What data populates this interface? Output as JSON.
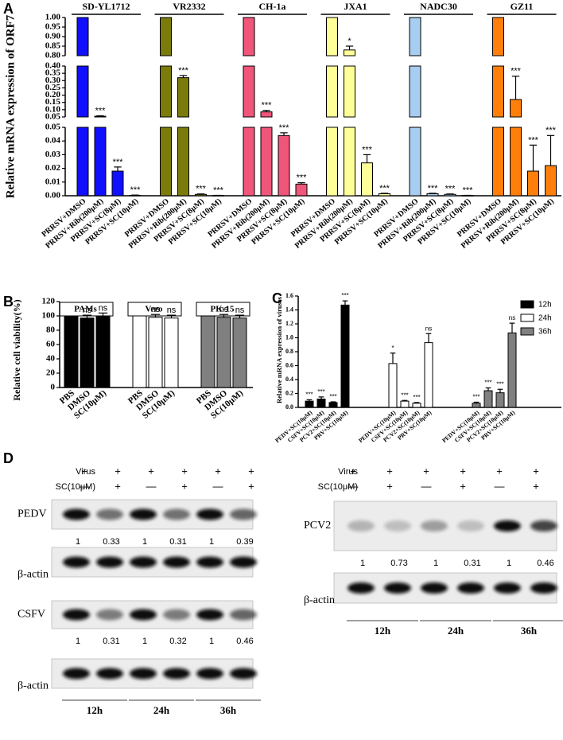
{
  "chart_data": [
    {
      "type": "bar",
      "panel_label": "A",
      "ylabel": "Relative mRNA expression of ORF7",
      "categories": [
        "PRRSV+DMSO",
        "PRRSV+Rib(200μM)",
        "PRRSV+SC(8μM)",
        "PRRSV+SC(10μM)"
      ],
      "segments": [
        {
          "ylim": [
            0,
            0.05
          ],
          "yticks": [
            {
              "value": 0,
              "label": "0.00"
            },
            0.01,
            0.02,
            0.03,
            0.04,
            0.05
          ]
        },
        {
          "ylim": [
            0.05,
            0.4
          ],
          "yticks": [
            0.05,
            {
              "value": 0.1,
              "label": "0.10"
            },
            0.15,
            {
              "value": 0.2,
              "label": "0.20"
            },
            0.25,
            {
              "value": 0.3,
              "label": "0.30"
            },
            0.35,
            {
              "value": 0.4,
              "label": "0.40"
            }
          ]
        },
        {
          "ylim": [
            0.8,
            1
          ],
          "yticks": [
            {
              "value": 0.8,
              "label": "0.80"
            },
            0.85,
            {
              "value": 0.9,
              "label": "0.90"
            },
            0.95,
            {
              "value": 1,
              "label": "1.00"
            }
          ]
        }
      ],
      "series": [
        {
          "name": "SD-YL1712",
          "color": "#1010ff",
          "values": [
            1,
            0.055,
            0.018,
            0.0003
          ],
          "errors": [
            null,
            0.003,
            0.003,
            0.0002
          ],
          "annotations": [
            null,
            "***",
            "***",
            "***"
          ]
        },
        {
          "name": "VR2332",
          "color": "#7b7b0c",
          "values": [
            1,
            0.32,
            0.001,
            0.0002
          ],
          "errors": [
            null,
            0.015,
            0.0003,
            0.0001
          ],
          "annotations": [
            null,
            "***",
            "***",
            "***"
          ]
        },
        {
          "name": "CH-1a",
          "color": "#f0557a",
          "values": [
            1,
            0.085,
            0.044,
            0.0085
          ],
          "errors": [
            null,
            0.01,
            0.002,
            0.001
          ],
          "annotations": [
            null,
            "***",
            "***",
            "***"
          ]
        },
        {
          "name": "JXA1",
          "color": "#ffff99",
          "values": [
            1,
            0.83,
            0.024,
            0.0015
          ],
          "errors": [
            null,
            0.02,
            0.006,
            0.0003
          ],
          "annotations": [
            null,
            "*",
            "***",
            "***"
          ]
        },
        {
          "name": "NADC30",
          "color": "#a7cdf0",
          "values": [
            1,
            0.0015,
            0.001,
            0.0002
          ],
          "errors": [
            null,
            0.0003,
            0.0003,
            0.0001
          ],
          "annotations": [
            null,
            "***",
            "***",
            "***"
          ]
        },
        {
          "name": "GZ11",
          "color": "#ff7f0a",
          "values": [
            1,
            0.17,
            0.018,
            0.022
          ],
          "errors": [
            null,
            0.16,
            0.019,
            0.022
          ],
          "annotations": [
            null,
            "***",
            "***",
            "***"
          ]
        }
      ]
    },
    {
      "type": "bar",
      "panel_label": "B",
      "ylabel": "Relative cell viability(%)",
      "categories": [
        "PBS",
        "DMSO",
        "SC(10μM)"
      ],
      "ylim": [
        0,
        120
      ],
      "yticks": [
        0,
        20,
        40,
        60,
        80,
        100,
        120
      ],
      "series": [
        {
          "name": "PAMs",
          "color": "#000000",
          "values": [
            100,
            97,
            100
          ],
          "errors": [
            null,
            4,
            4
          ],
          "annotations": [
            null,
            "ns",
            "ns"
          ]
        },
        {
          "name": "Vero",
          "color": "#ffffff",
          "values": [
            100,
            98,
            97
          ],
          "errors": [
            null,
            4,
            4
          ],
          "annotations": [
            null,
            "ns",
            "ns"
          ]
        },
        {
          "name": "PK-15",
          "color": "#808080",
          "values": [
            100,
            98,
            97
          ],
          "errors": [
            null,
            4,
            4
          ],
          "annotations": [
            null,
            "ns",
            "ns"
          ]
        }
      ]
    },
    {
      "type": "bar",
      "panel_label": "C",
      "ylabel": "Relative mRNA expression of viruses",
      "categories": [
        "PEDV+SC(10μM)",
        "CSFV+SC(10μM)",
        "PCV2+SC(10μM)",
        "PRV+SC(10μM)"
      ],
      "ylim": [
        0,
        1.6
      ],
      "yticks": [
        {
          "value": 0,
          "label": "0.0"
        },
        0.2,
        0.4,
        0.6,
        0.8,
        {
          "value": 1,
          "label": "1.0"
        },
        1.2,
        1.4,
        1.6
      ],
      "legend": "top-right",
      "series": [
        {
          "name": "12h",
          "color": "#000000",
          "values": [
            0.09,
            0.12,
            0.07,
            1.47
          ],
          "errors": [
            0.02,
            0.03,
            0.01,
            0.06
          ],
          "annotations": [
            "***",
            "***",
            "***",
            "***"
          ]
        },
        {
          "name": "24h",
          "color": "#ffffff",
          "values": [
            0.63,
            0.09,
            0.06,
            0.93
          ],
          "errors": [
            0.15,
            0.01,
            0.01,
            0.13
          ],
          "annotations": [
            "*",
            "***",
            "***",
            "ns"
          ]
        },
        {
          "name": "36h",
          "color": "#808080",
          "values": [
            0.06,
            0.24,
            0.21,
            1.07
          ],
          "errors": [
            0.015,
            0.04,
            0.05,
            0.14
          ],
          "annotations": [
            "***",
            "***",
            "***",
            "ns"
          ]
        }
      ]
    }
  ],
  "blots": {
    "panel_label": "D",
    "left": {
      "header_rows": [
        {
          "label": "Virus",
          "marks": [
            "+",
            "+",
            "+",
            "+",
            "+",
            "+"
          ]
        },
        {
          "label": "SC(10μM)",
          "marks": [
            "—",
            "+",
            "—",
            "+",
            "—",
            "+"
          ]
        }
      ],
      "rows": [
        {
          "label": "PEDV",
          "ratios": [
            1,
            0.33,
            1,
            0.31,
            1,
            0.39
          ]
        },
        {
          "label": "β-actin"
        },
        {
          "label": "CSFV",
          "ratios": [
            1,
            0.31,
            1,
            0.32,
            1,
            0.46
          ]
        },
        {
          "label": "β-actin"
        }
      ],
      "times": [
        "12h",
        "24h",
        "36h"
      ]
    },
    "right": {
      "header_rows": [
        {
          "label": "Virus",
          "marks": [
            "+",
            "+",
            "+",
            "+",
            "+",
            "+"
          ]
        },
        {
          "label": "SC(10μM)",
          "marks": [
            "—",
            "+",
            "—",
            "+",
            "—",
            "+"
          ]
        }
      ],
      "rows": [
        {
          "label": "PCV2",
          "ratios": [
            1,
            0.73,
            1,
            0.31,
            1,
            0.46
          ]
        },
        {
          "label": "β-actin"
        }
      ],
      "times": [
        "12h",
        "24h",
        "36h"
      ]
    }
  }
}
